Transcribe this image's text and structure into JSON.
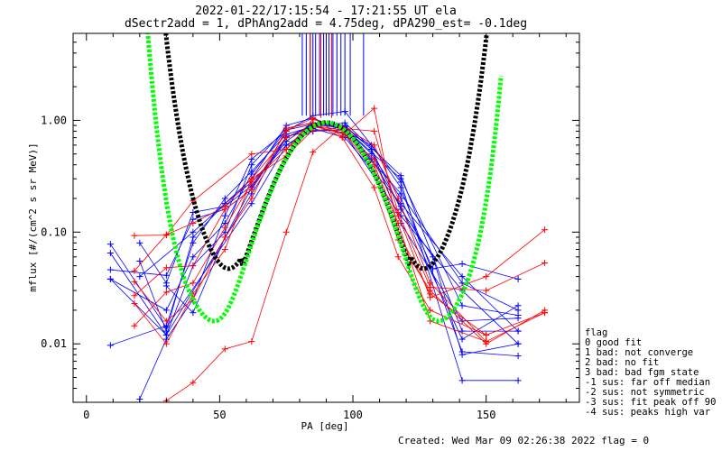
{
  "chart_data": {
    "type": "scatter",
    "title_lines": [
      "2022-01-22/17:15:54 - 17:21:55 UT ela",
      "dSectr2add = 1, dPhAng2add = 4.75deg, dPA290_est=  -0.1deg"
    ],
    "xlabel": "PA [deg]",
    "ylabel": "mflux [#/(cm^2 s sr MeV)]",
    "xlim": [
      -5,
      185
    ],
    "ylim": [
      0.003,
      6
    ],
    "yscale": "log",
    "xticks": [
      0,
      50,
      100,
      150
    ],
    "xtick_labels": [
      "0",
      "50",
      "100",
      "150"
    ],
    "yticks": [
      0.01,
      0.1,
      1.0
    ],
    "ytick_labels": [
      "0.01",
      "0.10",
      "1.00"
    ],
    "colors": {
      "blue": "#0000ff",
      "red": "#ff0000",
      "fit_black": "#000000",
      "fit_green": "#00ff00"
    },
    "series": [
      {
        "color": "blue",
        "x": [
          9,
          30,
          62,
          75,
          85,
          97,
          118,
          141,
          162
        ],
        "y": [
          0.078,
          0.014,
          0.18,
          0.6,
          0.85,
          0.7,
          0.18,
          0.04,
          0.013
        ]
      },
      {
        "color": "blue",
        "x": [
          9,
          30,
          62,
          75,
          85,
          97,
          118,
          141,
          162
        ],
        "y": [
          0.065,
          0.012,
          0.22,
          0.7,
          0.9,
          0.75,
          0.14,
          0.03,
          0.01
        ]
      },
      {
        "color": "blue",
        "x": [
          9,
          30,
          40,
          52,
          62,
          75,
          85,
          97,
          118,
          141,
          162
        ],
        "y": [
          0.046,
          0.041,
          0.13,
          0.16,
          0.24,
          0.72,
          0.8,
          0.82,
          0.22,
          0.035,
          0.02
        ]
      },
      {
        "color": "blue",
        "x": [
          9,
          30,
          40,
          52,
          62,
          75,
          85,
          97,
          118,
          141,
          162
        ],
        "y": [
          0.038,
          0.02,
          0.06,
          0.12,
          0.33,
          0.82,
          0.92,
          0.85,
          0.3,
          0.022,
          0.018
        ]
      },
      {
        "color": "blue",
        "x": [
          9,
          30,
          40,
          52,
          62,
          75,
          85,
          97,
          107,
          118,
          141,
          162
        ],
        "y": [
          0.038,
          0.012,
          0.05,
          0.1,
          0.4,
          0.85,
          0.95,
          0.9,
          0.55,
          0.12,
          0.016,
          0.017
        ]
      },
      {
        "color": "blue",
        "x": [
          9,
          30,
          40,
          52,
          62,
          75,
          85,
          97,
          118,
          141,
          162
        ],
        "y": [
          0.0097,
          0.0145,
          0.08,
          0.2,
          0.35,
          0.75,
          0.88,
          0.95,
          0.32,
          0.013,
          0.013
        ]
      },
      {
        "color": "blue",
        "x": [
          20,
          30,
          40,
          52,
          62,
          75,
          85,
          97,
          118,
          141,
          162
        ],
        "y": [
          0.0032,
          0.011,
          0.025,
          0.14,
          0.45,
          0.8,
          1.1,
          1.2,
          0.28,
          0.0047,
          0.0047
        ]
      },
      {
        "color": "blue",
        "x": [
          20,
          40,
          52,
          62,
          75,
          85,
          97,
          107,
          118,
          141,
          162
        ],
        "y": [
          0.04,
          0.1,
          0.18,
          0.3,
          0.9,
          1.05,
          0.8,
          0.6,
          0.25,
          0.0085,
          0.0078
        ]
      },
      {
        "color": "blue",
        "x": [
          20,
          30,
          40,
          52,
          62,
          75,
          85,
          97,
          107,
          118,
          130,
          141,
          162
        ],
        "y": [
          0.08,
          0.035,
          0.15,
          0.17,
          0.26,
          0.65,
          0.95,
          0.85,
          0.5,
          0.2,
          0.047,
          0.052,
          0.038
        ]
      },
      {
        "color": "blue",
        "x": [
          30,
          40,
          52,
          62,
          75,
          85,
          97,
          107,
          118,
          130,
          141,
          162
        ],
        "y": [
          0.033,
          0.019,
          0.09,
          0.25,
          0.7,
          0.92,
          0.88,
          0.55,
          0.16,
          0.06,
          0.008,
          0.01
        ]
      },
      {
        "color": "blue",
        "x": [
          20,
          30,
          40,
          52,
          62,
          75,
          85,
          97,
          107,
          118,
          141,
          162
        ],
        "y": [
          0.055,
          0.013,
          0.09,
          0.18,
          0.28,
          0.6,
          0.8,
          0.88,
          0.45,
          0.17,
          0.011,
          0.022
        ]
      },
      {
        "color": "red",
        "x": [
          18,
          30,
          40,
          62,
          75,
          85,
          96,
          108,
          117,
          129,
          150,
          172
        ],
        "y": [
          0.093,
          0.094,
          0.19,
          0.5,
          0.55,
          1.02,
          0.85,
          0.8,
          0.15,
          0.032,
          0.03,
          0.053
        ]
      },
      {
        "color": "red",
        "x": [
          18,
          30,
          40,
          52,
          62,
          75,
          85,
          96,
          108,
          117,
          129,
          150,
          172
        ],
        "y": [
          0.045,
          0.095,
          0.12,
          0.17,
          0.3,
          0.7,
          0.88,
          0.78,
          0.45,
          0.14,
          0.026,
          0.04,
          0.105
        ]
      },
      {
        "color": "red",
        "x": [
          18,
          30,
          40,
          52,
          62,
          75,
          85,
          96,
          108,
          117,
          129,
          150,
          172
        ],
        "y": [
          0.027,
          0.048,
          0.05,
          0.16,
          0.24,
          0.8,
          1.05,
          0.72,
          1.28,
          0.1,
          0.028,
          0.012,
          0.019
        ]
      },
      {
        "color": "red",
        "x": [
          18,
          30,
          40,
          52,
          62,
          75,
          85,
          96,
          108,
          117,
          129,
          150,
          172
        ],
        "y": [
          0.0145,
          0.029,
          0.035,
          0.11,
          0.28,
          0.55,
          0.9,
          0.82,
          0.35,
          0.085,
          0.03,
          0.01,
          0.02
        ]
      },
      {
        "color": "red",
        "x": [
          18,
          30,
          40,
          52,
          62,
          75,
          85,
          96,
          108,
          117,
          129,
          150,
          172
        ],
        "y": [
          0.023,
          0.01,
          0.028,
          0.07,
          0.3,
          0.48,
          0.82,
          0.82,
          0.4,
          0.12,
          0.016,
          0.0105,
          0.019
        ]
      },
      {
        "color": "red",
        "x": [
          30,
          40,
          52,
          62,
          75,
          85,
          96,
          108,
          117,
          129,
          150
        ],
        "y": [
          0.0031,
          0.0045,
          0.009,
          0.0105,
          0.1,
          0.52,
          0.88,
          0.6,
          0.2,
          0.035,
          0.0105
        ]
      },
      {
        "color": "red",
        "x": [
          18,
          30,
          40,
          52,
          62,
          75,
          85,
          96,
          108,
          117,
          129,
          150
        ],
        "y": [
          0.036,
          0.016,
          0.025,
          0.09,
          0.2,
          0.85,
          0.95,
          0.7,
          0.25,
          0.06,
          0.02,
          0.012
        ]
      }
    ],
    "spikes": {
      "color": "blue",
      "x": [
        81,
        82.5,
        84,
        85,
        86,
        87.5,
        89,
        90,
        91,
        92.5,
        94,
        95.5,
        97,
        99,
        104
      ],
      "y_top": 6
    },
    "red_spike_x": [
      84,
      88,
      92
    ],
    "fit_curves": [
      {
        "color": "fit_black",
        "center": 90,
        "x_range": [
          25,
          160
        ]
      },
      {
        "color": "fit_green",
        "center": 90,
        "x_range": [
          20,
          156
        ]
      }
    ],
    "legend_title": "flag",
    "legend_entries": [
      " 0 good fit",
      " 1 bad: not converge",
      " 2 bad: no fit",
      " 3 bad: bad fgm state",
      "-1 sus: far off median",
      "-2 sus: not symmetric",
      "-3 sus: fit peak off 90",
      "-4 sus: peaks high var"
    ],
    "footer": "Created: Wed Mar 09 02:26:38 2022   flag = 0"
  }
}
